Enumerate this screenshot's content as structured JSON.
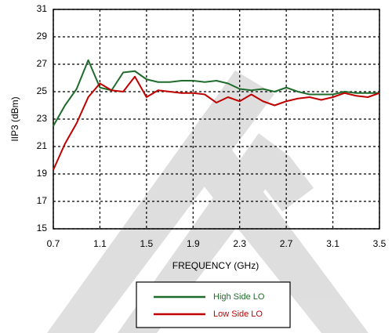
{
  "chart_data": {
    "type": "line",
    "xlabel": "FREQUENCY (GHz)",
    "ylabel": "IIP3 (dBm)",
    "x": [
      0.7,
      0.8,
      0.9,
      1.0,
      1.1,
      1.2,
      1.3,
      1.4,
      1.5,
      1.6,
      1.7,
      1.8,
      1.9,
      2.0,
      2.1,
      2.2,
      2.3,
      2.4,
      2.5,
      2.6,
      2.7,
      2.8,
      2.9,
      3.0,
      3.1,
      3.2,
      3.3,
      3.4,
      3.5
    ],
    "series": [
      {
        "name": "High Side LO",
        "color": "#1f6b2b",
        "values": [
          22.5,
          24.0,
          25.2,
          27.3,
          25.3,
          25.1,
          26.4,
          26.5,
          25.9,
          25.7,
          25.7,
          25.8,
          25.8,
          25.7,
          25.8,
          25.6,
          25.2,
          25.1,
          25.2,
          25.0,
          25.3,
          25.0,
          24.8,
          24.8,
          24.8,
          25.0,
          24.9,
          24.9,
          24.9
        ]
      },
      {
        "name": "Low Side LO",
        "color": "#c00000",
        "values": [
          19.3,
          21.2,
          22.7,
          24.6,
          25.6,
          25.1,
          25.0,
          26.1,
          24.6,
          25.1,
          25.0,
          24.9,
          24.9,
          24.8,
          24.2,
          24.6,
          24.3,
          24.8,
          24.3,
          24.0,
          24.3,
          24.5,
          24.6,
          24.4,
          24.6,
          24.9,
          24.7,
          24.6,
          24.9
        ]
      }
    ],
    "xlim": [
      0.7,
      3.5
    ],
    "xticks": [
      0.7,
      1.1,
      1.5,
      1.9,
      2.3,
      2.7,
      3.1,
      3.5
    ],
    "ylim": [
      15,
      31
    ],
    "yticks": [
      15,
      17,
      19,
      21,
      23,
      25,
      27,
      29,
      31
    ],
    "grid": true,
    "legend": "bottom"
  }
}
